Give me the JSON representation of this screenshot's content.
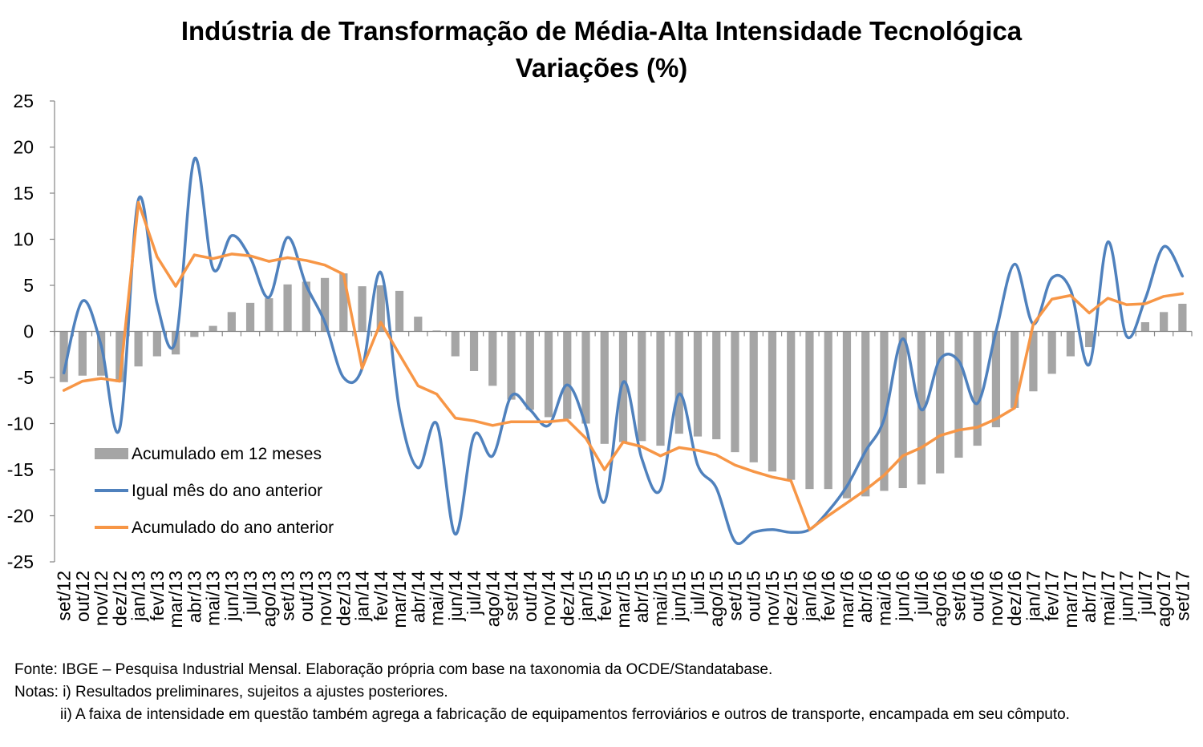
{
  "chart_data": {
    "type": "bar+line",
    "title": "Indústria de Transformação de Média-Alta Intensidade Tecnológica",
    "subtitle": "Variações (%)",
    "ylim": [
      -25,
      25
    ],
    "yticks": [
      25,
      20,
      15,
      10,
      5,
      0,
      -5,
      -10,
      -15,
      -20,
      -25
    ],
    "grid": false,
    "legend_position": "bottom-left",
    "categories": [
      "set/12",
      "out/12",
      "nov/12",
      "dez/12",
      "jan/13",
      "fev/13",
      "mar/13",
      "abr/13",
      "mai/13",
      "jun/13",
      "jul/13",
      "ago/13",
      "set/13",
      "out/13",
      "nov/13",
      "dez/13",
      "jan/14",
      "fev/14",
      "mar/14",
      "abr/14",
      "mai/14",
      "jun/14",
      "jul/14",
      "ago/14",
      "set/14",
      "out/14",
      "nov/14",
      "dez/14",
      "jan/15",
      "fev/15",
      "mar/15",
      "abr/15",
      "mai/15",
      "jun/15",
      "jul/15",
      "ago/15",
      "set/15",
      "out/15",
      "nov/15",
      "dez/15",
      "jan/16",
      "fev/16",
      "mar/16",
      "abr/16",
      "mai/16",
      "jun/16",
      "jul/16",
      "ago/16",
      "set/16",
      "out/16",
      "nov/16",
      "dez/16",
      "jan/17",
      "fev/17",
      "mar/17",
      "abr/17",
      "mai/17",
      "jun/17",
      "jul/17",
      "ago/17",
      "set/17"
    ],
    "series": [
      {
        "name": "Acumulado em 12 meses",
        "kind": "bar",
        "color": "#a5a5a5",
        "values": [
          -5.5,
          -4.8,
          -4.8,
          -5.5,
          -3.8,
          -2.7,
          -2.5,
          -0.6,
          0.6,
          2.1,
          3.1,
          3.6,
          5.1,
          5.4,
          5.8,
          6.3,
          4.9,
          5.0,
          4.4,
          1.6,
          0.1,
          -2.7,
          -4.3,
          -5.9,
          -7.4,
          -8.5,
          -9.3,
          -9.5,
          -10.0,
          -12.2,
          -12.0,
          -11.9,
          -12.4,
          -11.1,
          -11.4,
          -11.7,
          -13.1,
          -14.2,
          -15.2,
          -16.1,
          -17.1,
          -17.1,
          -18.1,
          -17.9,
          -17.3,
          -17.0,
          -16.6,
          -15.4,
          -13.7,
          -12.4,
          -10.4,
          -8.3,
          -6.5,
          -4.6,
          -2.7,
          -1.7,
          0.0,
          0.0,
          1.0,
          2.1,
          3.0
        ]
      },
      {
        "name": "Igual mês do ano anterior",
        "kind": "line",
        "smooth": true,
        "color": "#4f81bd",
        "values": [
          -4.5,
          3.3,
          -1.5,
          -10.5,
          14.3,
          3.0,
          -1.0,
          18.7,
          6.8,
          10.4,
          8.0,
          3.7,
          10.2,
          5.0,
          1.0,
          -5.0,
          -4.0,
          6.4,
          -8.5,
          -14.8,
          -10.0,
          -22.0,
          -11.3,
          -13.5,
          -7.0,
          -8.5,
          -10.2,
          -5.8,
          -10.3,
          -18.5,
          -5.5,
          -13.8,
          -17.2,
          -6.8,
          -14.5,
          -17.0,
          -22.8,
          -21.8,
          -21.5,
          -21.8,
          -21.5,
          -19.5,
          -16.8,
          -13.0,
          -9.5,
          -0.8,
          -8.5,
          -3.0,
          -3.2,
          -7.8,
          0.0,
          7.3,
          0.8,
          5.8,
          4.5,
          -3.6,
          9.7,
          -0.5,
          3.5,
          9.2,
          6.0
        ]
      },
      {
        "name": "Acumulado do ano anterior",
        "kind": "line",
        "smooth": false,
        "color": "#f79646",
        "values": [
          -6.4,
          -5.4,
          -5.1,
          -5.4,
          14.0,
          8.1,
          4.9,
          8.3,
          7.9,
          8.4,
          8.2,
          7.6,
          8.0,
          7.7,
          7.2,
          6.2,
          -4.0,
          1.0,
          -2.5,
          -5.9,
          -6.8,
          -9.4,
          -9.7,
          -10.2,
          -9.8,
          -9.8,
          -9.8,
          -9.6,
          -11.6,
          -15.0,
          -12.0,
          -12.5,
          -13.5,
          -12.6,
          -12.9,
          -13.4,
          -14.5,
          -15.2,
          -15.8,
          -16.2,
          -21.5,
          -20.0,
          -18.6,
          -17.2,
          -15.6,
          -13.5,
          -12.6,
          -11.3,
          -10.7,
          -10.4,
          -9.5,
          -8.3,
          0.8,
          3.5,
          3.9,
          2.0,
          3.6,
          2.9,
          3.0,
          3.8,
          4.1
        ]
      }
    ]
  },
  "notes": {
    "source": "Fonte: IBGE – Pesquisa Industrial Mensal. Elaboração própria com base na taxonomia da OCDE/Standatabase.",
    "note_i": "Notas: i) Resultados preliminares, sujeitos a ajustes posteriores.",
    "note_ii": "ii) A faixa de intensidade em questão também agrega a fabricação de equipamentos ferroviários e outros de transporte, encampada em seu cômputo."
  }
}
